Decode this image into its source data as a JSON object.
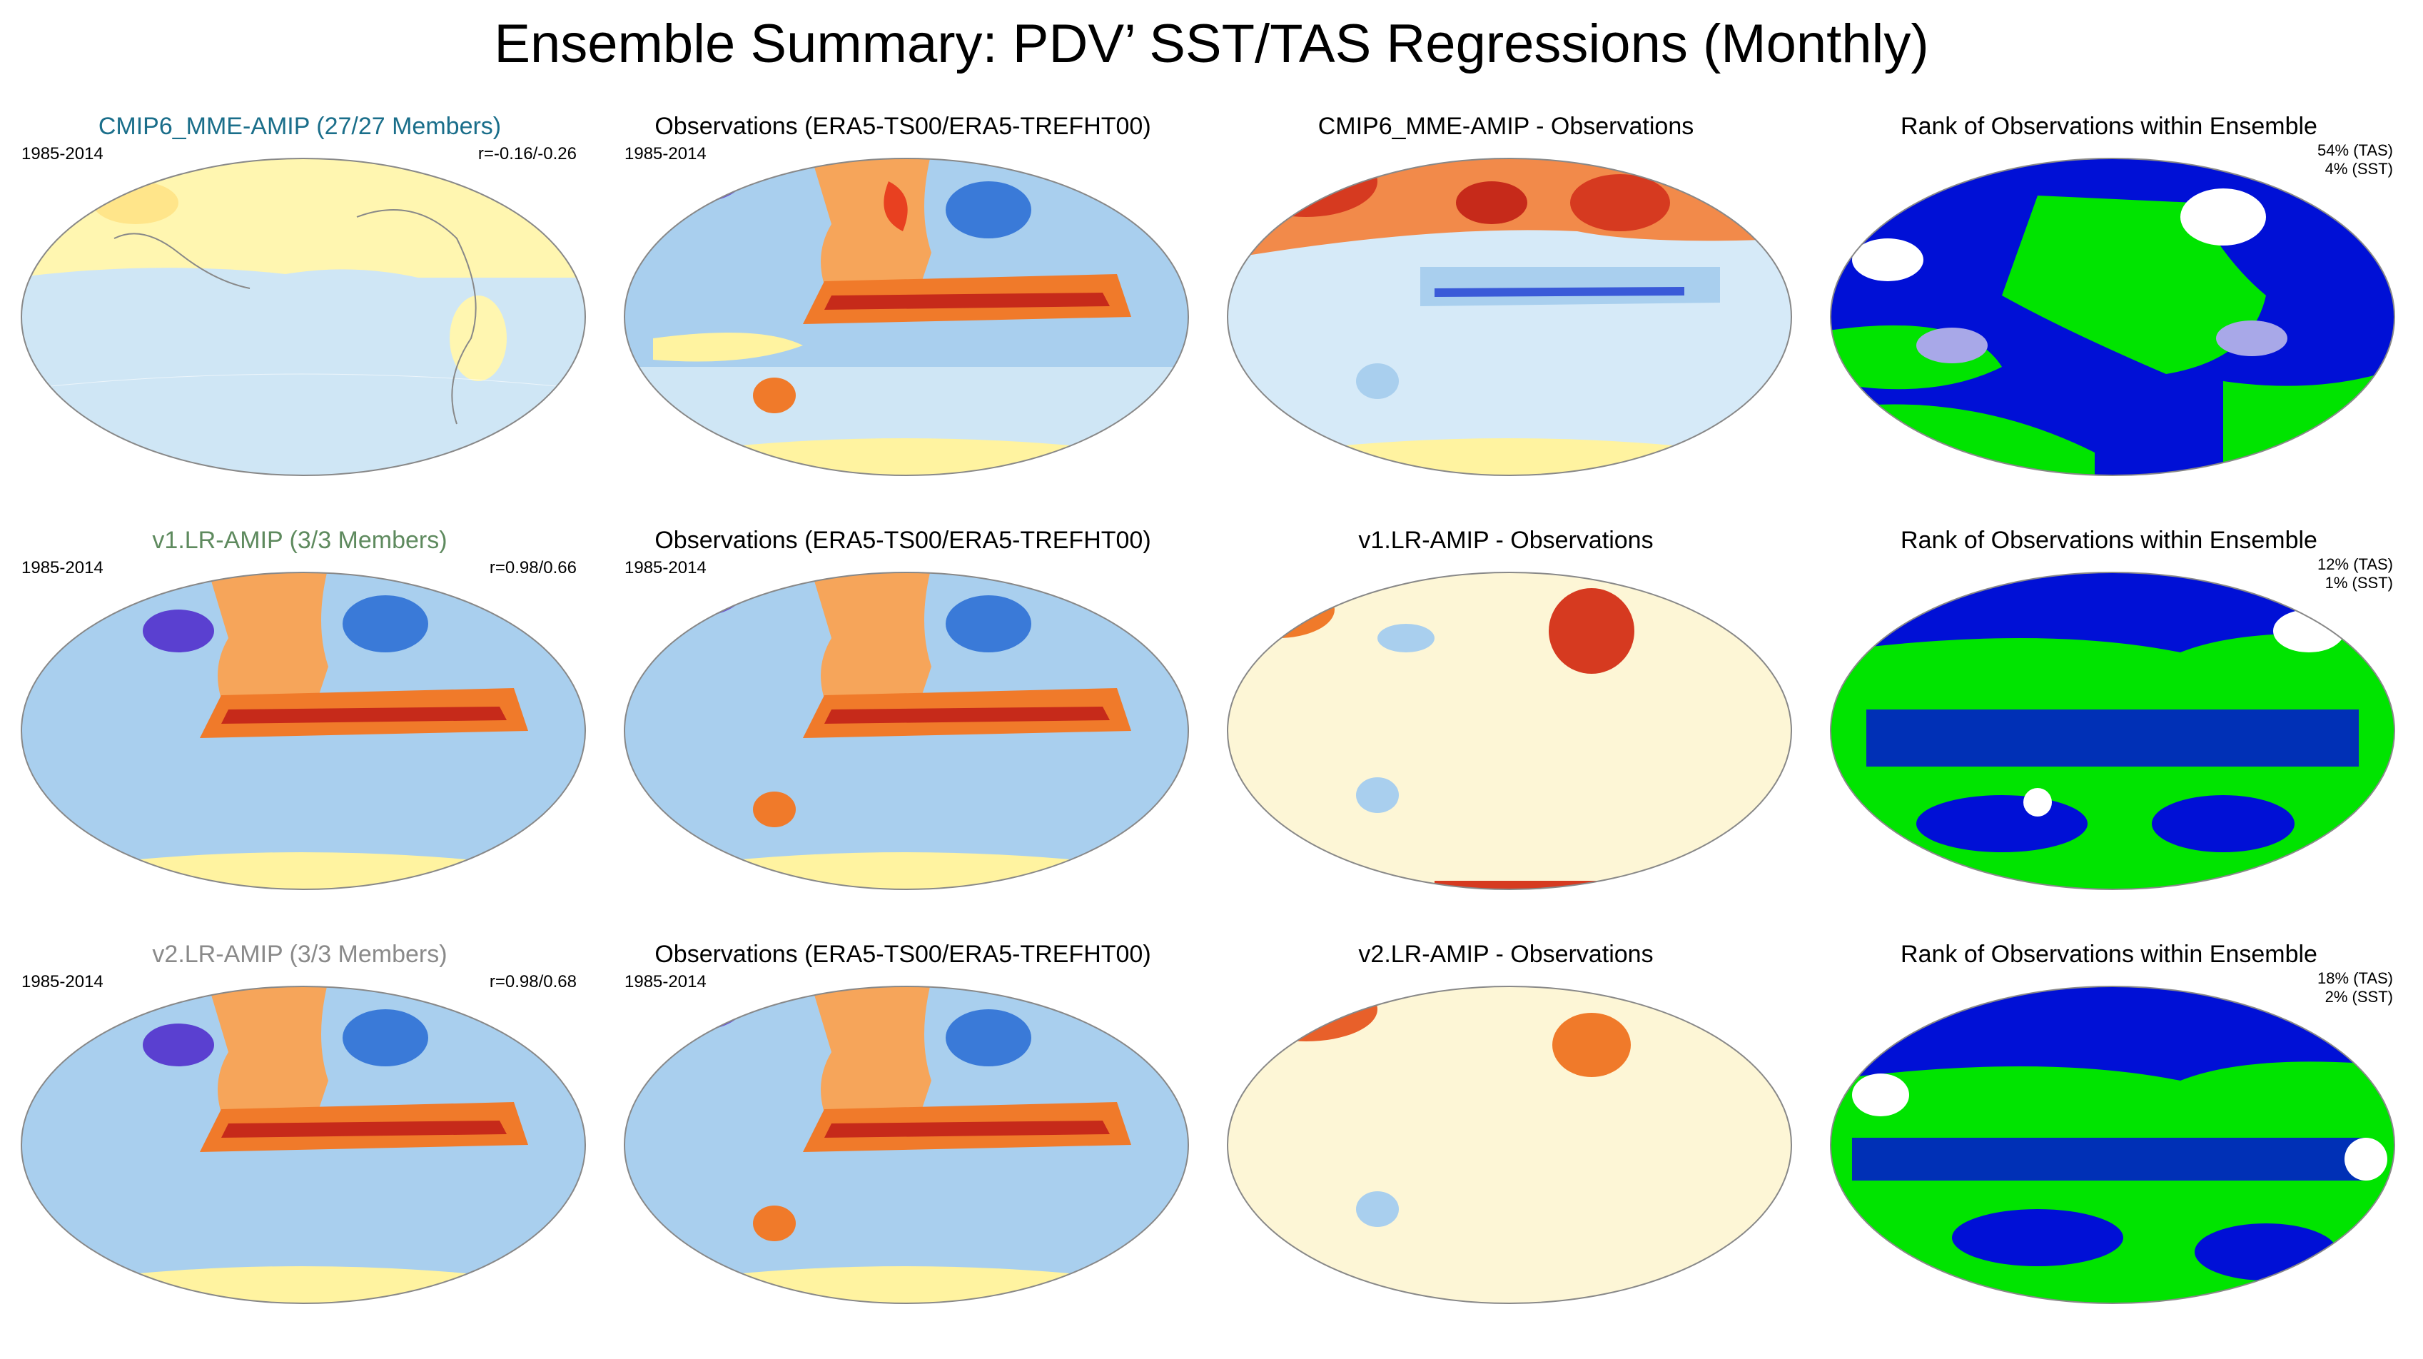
{
  "figure": {
    "title": "Ensemble Summary: PDV’ SST/TAS Regressions (Monthly)",
    "colors": {
      "cmip6_title": "#1a6e8a",
      "v1_title": "#5e8a5e",
      "v2_title": "#8a8a8a",
      "obs_title": "#000000",
      "ocean_base": "#d9ecf8",
      "rank_green": "#00e400",
      "rank_blue": "#0010d6",
      "rank_white": "#ffffff",
      "rank_lav": "#a8a8e8"
    }
  },
  "rows": [
    {
      "model": {
        "title": "CMIP6_MME-AMIP (27/27 Members)",
        "period": "1985-2014",
        "stat": "r=-0.16/-0.26"
      },
      "obs": {
        "title": "Observations (ERA5-TS00/ERA5-TREFHT00)",
        "period": "1985-2014"
      },
      "diff": {
        "title": "CMIP6_MME-AMIP - Observations"
      },
      "rank": {
        "title": "Rank of Observations within Ensemble",
        "tas": "54% (TAS)",
        "sst": "4% (SST)"
      }
    },
    {
      "model": {
        "title": "v1.LR-AMIP (3/3 Members)",
        "period": "1985-2014",
        "stat": "r=0.98/0.66"
      },
      "obs": {
        "title": "Observations (ERA5-TS00/ERA5-TREFHT00)",
        "period": "1985-2014"
      },
      "diff": {
        "title": "v1.LR-AMIP - Observations"
      },
      "rank": {
        "title": "Rank of Observations within Ensemble",
        "tas": "12% (TAS)",
        "sst": "1% (SST)"
      }
    },
    {
      "model": {
        "title": "v2.LR-AMIP (3/3 Members)",
        "period": "1985-2014",
        "stat": "r=0.98/0.68"
      },
      "obs": {
        "title": "Observations (ERA5-TS00/ERA5-TREFHT00)",
        "period": "1985-2014"
      },
      "diff": {
        "title": "v2.LR-AMIP - Observations"
      },
      "rank": {
        "title": "Rank of Observations within Ensemble",
        "tas": "18% (TAS)",
        "sst": "2% (SST)"
      }
    }
  ]
}
